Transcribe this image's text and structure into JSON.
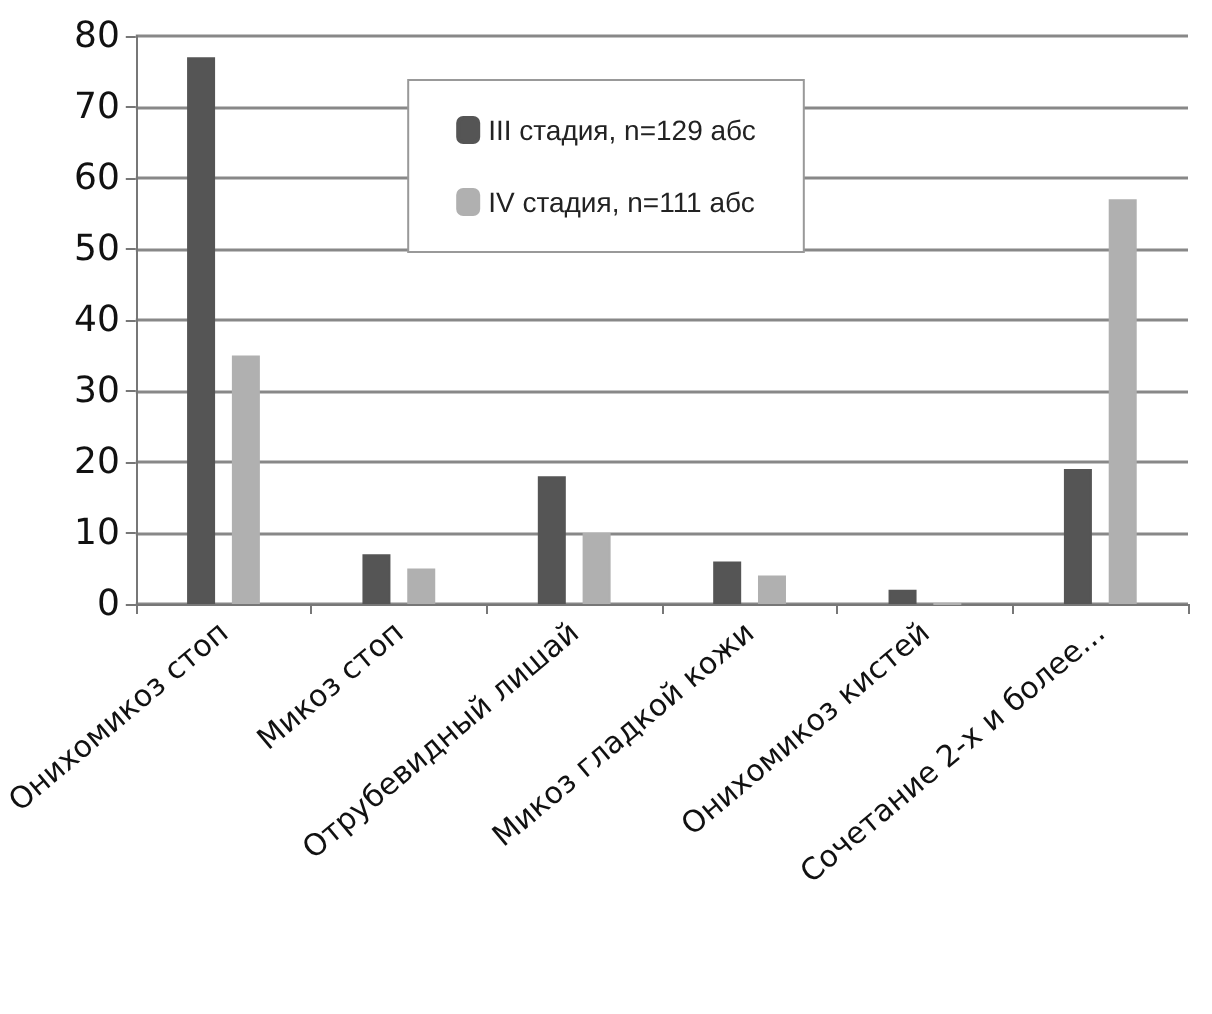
{
  "chart_data": {
    "type": "bar",
    "categories": [
      "Онихомикоз стоп",
      "Микоз стоп",
      "Отрубевидный лишай",
      "Микоз гладкой кожи",
      "Онихомикоз кистей",
      "Сочетание 2-х и более..."
    ],
    "series": [
      {
        "name": "III стадия, n=129 абс",
        "color": "#555555",
        "values": [
          77,
          7,
          18,
          6,
          2,
          19
        ]
      },
      {
        "name": "IV стадия, n=111 абс",
        "color": "#b0b0b0",
        "values": [
          35,
          5,
          10,
          4,
          0,
          57
        ]
      }
    ],
    "ylim": [
      0,
      80
    ],
    "yticks": [
      0,
      10,
      20,
      30,
      40,
      50,
      60,
      70,
      80
    ],
    "grid": "y",
    "legend": "top"
  }
}
